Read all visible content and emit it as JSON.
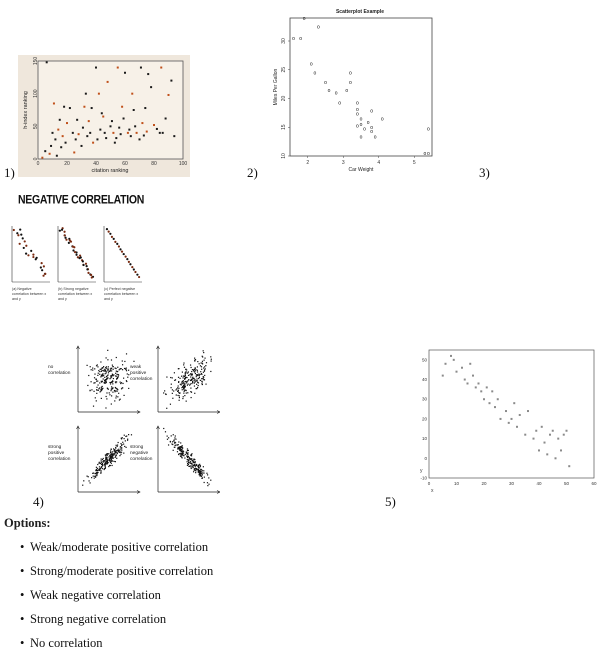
{
  "figures": [
    {
      "id": "1",
      "label": "1)",
      "type": "scatter",
      "xlabel": "citation ranking",
      "ylabel": "h-index ranking",
      "x_ticks": [
        "0",
        "20",
        "40",
        "60",
        "80",
        "100"
      ],
      "y_ticks": [
        "0",
        "50",
        "100",
        "150"
      ],
      "background": "#f3ebe0",
      "point_color": "#1a1a1a",
      "accent_point_color": "#c0501a"
    },
    {
      "id": "2",
      "label": "2)",
      "type": "scatter",
      "title": "Scatterplot Example",
      "xlabel": "Car Weight",
      "ylabel": "Miles Per Gallon",
      "x_ticks": [
        "2",
        "3",
        "4",
        "5"
      ],
      "y_ticks": [
        "10",
        "15",
        "20",
        "25",
        "30"
      ]
    },
    {
      "id": "3",
      "label": "3)"
    },
    {
      "id": "negative-correlation",
      "title": "NEGATIVE CORRELATION",
      "panels": [
        {
          "caption": "(a) Negative correlation between x and y"
        },
        {
          "caption": "(b) Strong negative correlation between x and y"
        },
        {
          "caption": "(c) Perfect negative correlation between x and y"
        }
      ]
    },
    {
      "id": "4",
      "label": "4)",
      "panels": [
        {
          "caption_line1": "no",
          "caption_line2": "correlation"
        },
        {
          "caption_line1": "weak",
          "caption_line2": "positive",
          "caption_line3": "correlation"
        },
        {
          "caption_line1": "strong",
          "caption_line2": "positive",
          "caption_line3": "correlation"
        },
        {
          "caption_line1": "strong",
          "caption_line2": "negative",
          "caption_line3": "correlation"
        }
      ]
    },
    {
      "id": "5",
      "label": "5)",
      "type": "scatter",
      "xlabel": "x",
      "ylabel": "y",
      "x_ticks": [
        "0",
        "10",
        "20",
        "30",
        "40",
        "50",
        "60"
      ],
      "y_ticks": [
        "-10",
        "0",
        "10",
        "20",
        "30",
        "40",
        "50"
      ]
    }
  ],
  "options": {
    "title": "Options:",
    "items": [
      "Weak/moderate positive correlation",
      "Strong/moderate positive correlation",
      "Weak negative correlation",
      "Strong negative correlation",
      "No correlation"
    ]
  },
  "chart_data": [
    {
      "type": "scatter",
      "title": "",
      "xlabel": "citation ranking",
      "ylabel": "h-index ranking",
      "xlim": [
        0,
        100
      ],
      "ylim": [
        0,
        150
      ],
      "x": [
        3,
        5,
        6,
        8,
        9,
        10,
        11,
        12,
        13,
        14,
        15,
        16,
        17,
        18,
        19,
        20,
        22,
        24,
        25,
        26,
        27,
        28,
        30,
        31,
        32,
        33,
        34,
        35,
        36,
        37,
        38,
        40,
        41,
        42,
        43,
        44,
        45,
        46,
        47,
        48,
        50,
        51,
        52,
        53,
        54,
        55,
        56,
        57,
        58,
        59,
        60,
        62,
        63,
        64,
        65,
        66,
        67,
        68,
        70,
        71,
        72,
        73,
        74,
        75,
        76,
        78,
        80,
        82,
        84,
        85,
        86,
        88,
        90,
        92,
        94
      ],
      "y": [
        2,
        12,
        148,
        8,
        20,
        40,
        85,
        30,
        5,
        45,
        60,
        18,
        35,
        80,
        25,
        55,
        78,
        40,
        10,
        30,
        60,
        38,
        20,
        48,
        80,
        100,
        35,
        58,
        40,
        78,
        25,
        140,
        30,
        100,
        45,
        70,
        65,
        40,
        32,
        118,
        50,
        58,
        40,
        25,
        32,
        140,
        48,
        38,
        80,
        62,
        132,
        40,
        45,
        35,
        100,
        75,
        50,
        40,
        30,
        140,
        55,
        36,
        78,
        42,
        130,
        110,
        52,
        46,
        40,
        140,
        40,
        62,
        98,
        120,
        35
      ],
      "grid": false,
      "legend": null
    },
    {
      "type": "scatter",
      "title": "Scatterplot Example",
      "xlabel": "Car Weight",
      "ylabel": "Miles Per Gallon",
      "xlim": [
        1.5,
        5.5
      ],
      "ylim": [
        10,
        34
      ],
      "x": [
        1.6,
        1.8,
        1.9,
        2.1,
        2.2,
        2.3,
        2.5,
        2.6,
        2.8,
        2.9,
        3.1,
        3.2,
        3.2,
        3.4,
        3.4,
        3.4,
        3.4,
        3.5,
        3.5,
        3.5,
        3.6,
        3.7,
        3.8,
        3.8,
        3.8,
        3.9,
        4.1,
        5.3,
        5.4,
        5.4
      ],
      "y": [
        30.4,
        30.4,
        33.9,
        26.0,
        24.4,
        32.4,
        22.8,
        21.4,
        21.0,
        19.2,
        21.4,
        22.8,
        24.4,
        18.1,
        17.3,
        19.2,
        15.2,
        16.4,
        15.5,
        13.3,
        14.7,
        15.8,
        15.0,
        14.3,
        17.8,
        13.3,
        16.4,
        10.4,
        10.4,
        14.7
      ],
      "grid": false,
      "legend": null
    },
    {
      "type": "scatter",
      "title": "",
      "xlabel": "x",
      "ylabel": "y",
      "xlim": [
        0,
        60
      ],
      "ylim": [
        -10,
        55
      ],
      "x": [
        5,
        6,
        8,
        9,
        10,
        12,
        13,
        14,
        15,
        16,
        17,
        18,
        19,
        20,
        21,
        22,
        23,
        24,
        25,
        26,
        28,
        29,
        30,
        31,
        32,
        33,
        35,
        36,
        38,
        39,
        40,
        41,
        42,
        43,
        44,
        45,
        46,
        47,
        48,
        49,
        50,
        51
      ],
      "y": [
        42,
        48,
        52,
        50,
        44,
        46,
        40,
        38,
        48,
        42,
        36,
        38,
        34,
        30,
        36,
        28,
        34,
        26,
        30,
        20,
        24,
        18,
        20,
        28,
        16,
        22,
        12,
        24,
        10,
        14,
        4,
        16,
        8,
        2,
        12,
        14,
        0,
        10,
        4,
        12,
        14,
        -4
      ],
      "grid": false,
      "legend": null
    }
  ]
}
